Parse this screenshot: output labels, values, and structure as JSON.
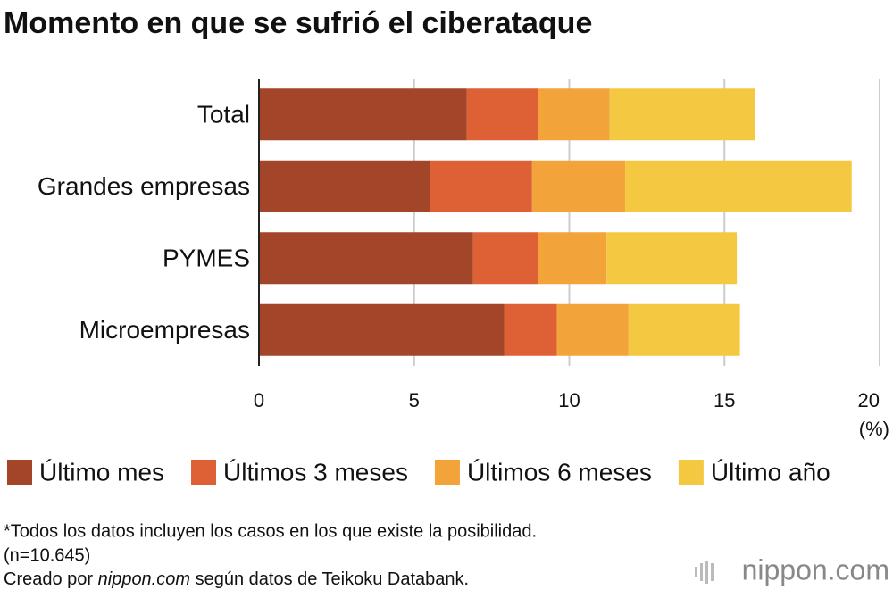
{
  "chart_data": {
    "type": "stacked-bar-horizontal",
    "title": "Momento en que se sufrió el ciberataque",
    "categories": [
      "Total",
      "Grandes empresas",
      "PYMES",
      "Microempresas"
    ],
    "series": [
      {
        "name": "Último mes",
        "color": "#a34528",
        "values": [
          6.7,
          5.5,
          6.9,
          7.9
        ]
      },
      {
        "name": "Últimos 3 meses",
        "color": "#dd6135",
        "values": [
          2.3,
          3.3,
          2.1,
          1.7
        ]
      },
      {
        "name": "Últimos 6 meses",
        "color": "#f2a33a",
        "values": [
          2.3,
          3.0,
          2.2,
          2.3
        ]
      },
      {
        "name": "Último año",
        "color": "#f5c842",
        "values": [
          4.7,
          7.3,
          4.2,
          3.6
        ]
      }
    ],
    "xlim": [
      0,
      20
    ],
    "xticks": [
      0,
      5,
      10,
      15,
      20
    ],
    "x_unit": "(%)",
    "grid": true,
    "notes": [
      "*Todos los datos incluyen los casos en los que existe la posibilidad.",
      "(n=10.645)"
    ],
    "source": [
      "Creado por ",
      "nippon.com",
      " según datos de Teikoku Databank."
    ],
    "logo": "nippon.com"
  }
}
